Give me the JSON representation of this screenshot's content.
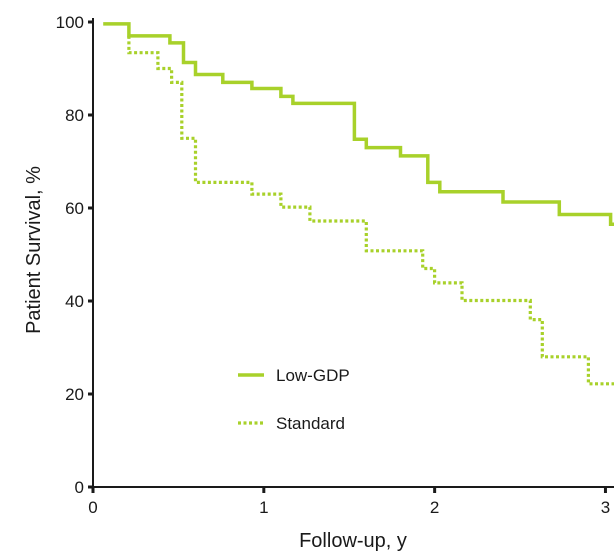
{
  "chart_data": {
    "type": "line",
    "xlabel": "Follow-up, y",
    "ylabel": "Patient Survival, %",
    "xlim": [
      0,
      3.05
    ],
    "ylim": [
      0,
      100
    ],
    "xticks": [
      0,
      1,
      2,
      3
    ],
    "yticks": [
      0,
      20,
      40,
      60,
      80,
      100
    ],
    "xtick_labels": [
      "0",
      "1",
      "2",
      "3"
    ],
    "ytick_labels": [
      "0",
      "20",
      "40",
      "60",
      "80",
      "100"
    ],
    "grid": false,
    "legend_position": "lower-left",
    "series": [
      {
        "name": "Low-GDP",
        "color": "#a8d12a",
        "style": "solid",
        "points": [
          [
            0.06,
            99.6
          ],
          [
            0.21,
            99.6
          ],
          [
            0.21,
            97.0
          ],
          [
            0.45,
            97.0
          ],
          [
            0.45,
            95.5
          ],
          [
            0.53,
            95.5
          ],
          [
            0.53,
            91.3
          ],
          [
            0.6,
            91.3
          ],
          [
            0.6,
            88.7
          ],
          [
            0.76,
            88.7
          ],
          [
            0.76,
            87.0
          ],
          [
            0.93,
            87.0
          ],
          [
            0.93,
            85.7
          ],
          [
            1.1,
            85.7
          ],
          [
            1.1,
            84.0
          ],
          [
            1.17,
            84.0
          ],
          [
            1.17,
            82.5
          ],
          [
            1.53,
            82.5
          ],
          [
            1.53,
            74.8
          ],
          [
            1.6,
            74.8
          ],
          [
            1.6,
            73.0
          ],
          [
            1.8,
            73.0
          ],
          [
            1.8,
            71.2
          ],
          [
            1.96,
            71.2
          ],
          [
            1.96,
            65.5
          ],
          [
            2.03,
            65.5
          ],
          [
            2.03,
            63.5
          ],
          [
            2.4,
            63.5
          ],
          [
            2.4,
            61.3
          ],
          [
            2.73,
            61.3
          ],
          [
            2.73,
            58.6
          ],
          [
            3.03,
            58.6
          ],
          [
            3.03,
            56.5
          ],
          [
            3.05,
            56.5
          ]
        ]
      },
      {
        "name": "Standard",
        "color": "#a8d12a",
        "style": "dotted",
        "points": [
          [
            0.21,
            97.0
          ],
          [
            0.21,
            93.4
          ],
          [
            0.38,
            93.4
          ],
          [
            0.38,
            90.0
          ],
          [
            0.46,
            90.0
          ],
          [
            0.46,
            87.0
          ],
          [
            0.52,
            87.0
          ],
          [
            0.52,
            75.0
          ],
          [
            0.6,
            75.0
          ],
          [
            0.6,
            65.5
          ],
          [
            0.93,
            65.5
          ],
          [
            0.93,
            63.0
          ],
          [
            1.1,
            63.0
          ],
          [
            1.1,
            60.2
          ],
          [
            1.27,
            60.2
          ],
          [
            1.27,
            57.2
          ],
          [
            1.6,
            57.2
          ],
          [
            1.6,
            50.8
          ],
          [
            1.93,
            50.8
          ],
          [
            1.93,
            47.0
          ],
          [
            2.0,
            47.0
          ],
          [
            2.0,
            43.9
          ],
          [
            2.16,
            43.9
          ],
          [
            2.16,
            40.1
          ],
          [
            2.56,
            40.1
          ],
          [
            2.56,
            36.0
          ],
          [
            2.63,
            36.0
          ],
          [
            2.63,
            28.0
          ],
          [
            2.9,
            28.0
          ],
          [
            2.9,
            22.2
          ],
          [
            3.05,
            22.2
          ]
        ]
      }
    ]
  }
}
